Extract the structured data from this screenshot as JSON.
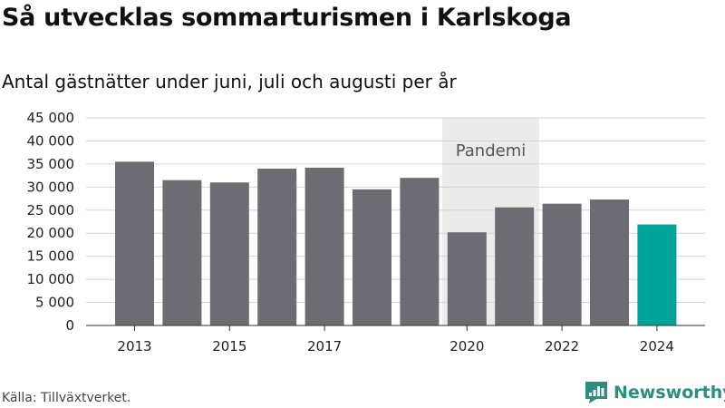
{
  "header": {
    "title": "Så utvecklas sommarturismen i Karlskoga",
    "subtitle": "Antal gästnätter under juni, juli och augusti per år"
  },
  "footer": {
    "source": "Källa: Tillväxtverket.",
    "brand": "Newsworthy"
  },
  "colors": {
    "bar": "#6d6c72",
    "highlight": "#00a398",
    "pandemic_band": "#ebebeb",
    "grid": "#d4d4d4",
    "brand": "#2a8f7d"
  },
  "chart_data": {
    "type": "bar",
    "title": "Så utvecklas sommarturismen i Karlskoga",
    "subtitle": "Antal gästnätter under juni, juli och augusti per år",
    "categories": [
      2013,
      2014,
      2015,
      2016,
      2017,
      2018,
      2019,
      2020,
      2021,
      2022,
      2023,
      2024
    ],
    "values": [
      35500,
      31500,
      31000,
      34000,
      34200,
      29500,
      32000,
      20200,
      25600,
      26400,
      27300,
      21900
    ],
    "highlight_category": 2024,
    "x_tick_labels": [
      "2013",
      "2015",
      "2017",
      "2020",
      "2022",
      "2024"
    ],
    "y_ticks": [
      0,
      5000,
      10000,
      15000,
      20000,
      25000,
      30000,
      35000,
      40000,
      45000
    ],
    "y_tick_labels": [
      "0",
      "5 000",
      "10 000",
      "15 000",
      "20 000",
      "25 000",
      "30 000",
      "35 000",
      "40 000",
      "45 000"
    ],
    "ylim": [
      0,
      45000
    ],
    "grid": true,
    "annotation": {
      "label": "Pandemi",
      "from": 2020,
      "to": 2021
    },
    "xlabel": "",
    "ylabel": ""
  }
}
